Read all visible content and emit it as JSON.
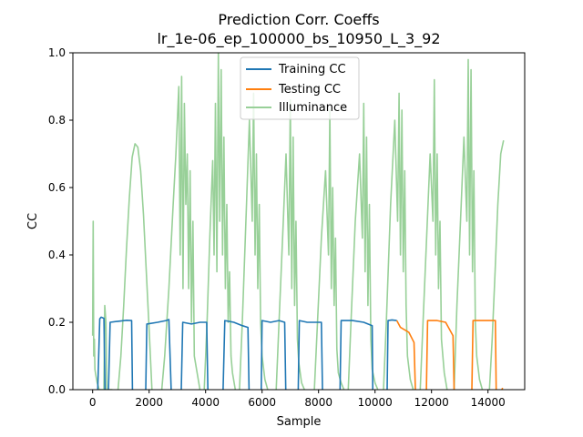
{
  "chart_data": {
    "type": "line",
    "title": "Prediction Corr. Coeffs",
    "subtitle": "lr_1e-06_ep_100000_bs_10950_L_3_92",
    "xlabel": "Sample",
    "ylabel": "CC",
    "xlim": [
      -700,
      15300
    ],
    "ylim": [
      0,
      1.0
    ],
    "x_ticks": [
      0,
      2000,
      4000,
      6000,
      8000,
      10000,
      12000,
      14000
    ],
    "y_ticks": [
      0.0,
      0.2,
      0.4,
      0.6,
      0.8,
      1.0
    ],
    "legend_position": "upper center",
    "grid": false,
    "series": [
      {
        "name": "Training CC",
        "color": "#1f77b4",
        "segments": [
          {
            "x": [
              180,
              250,
              300,
              400,
              440
            ],
            "y": [
              0.0,
              0.21,
              0.215,
              0.212,
              0.0
            ]
          },
          {
            "x": [
              560,
              620,
              900,
              1200,
              1380,
              1410
            ],
            "y": [
              0.0,
              0.2,
              0.203,
              0.206,
              0.205,
              0.0
            ]
          },
          {
            "x": [
              1880,
              1920,
              2300,
              2600,
              2700,
              2780
            ],
            "y": [
              0.0,
              0.195,
              0.2,
              0.205,
              0.208,
              0.0
            ]
          },
          {
            "x": [
              3140,
              3190,
              3500,
              3800,
              4040,
              4080
            ],
            "y": [
              0.0,
              0.2,
              0.195,
              0.2,
              0.2,
              0.0
            ]
          },
          {
            "x": [
              4620,
              4680,
              5000,
              5300,
              5500,
              5540
            ],
            "y": [
              0.0,
              0.205,
              0.2,
              0.19,
              0.185,
              0.0
            ]
          },
          {
            "x": [
              5970,
              6000,
              6300,
              6600,
              6800,
              6840
            ],
            "y": [
              0.0,
              0.205,
              0.2,
              0.205,
              0.2,
              0.0
            ]
          },
          {
            "x": [
              7280,
              7320,
              7600,
              7900,
              8100,
              8140
            ],
            "y": [
              0.0,
              0.205,
              0.2,
              0.2,
              0.2,
              0.0
            ]
          },
          {
            "x": [
              8760,
              8800,
              9200,
              9600,
              9900,
              9920
            ],
            "y": [
              0.0,
              0.205,
              0.205,
              0.2,
              0.19,
              0.0
            ]
          },
          {
            "x": [
              10430,
              10460,
              10600,
              10770
            ],
            "y": [
              0.0,
              0.205,
              0.207,
              0.205
            ]
          }
        ]
      },
      {
        "name": "Testing CC",
        "color": "#ff7f0e",
        "segments": [
          {
            "x": [
              10770,
              10900,
              11200,
              11380,
              11430
            ],
            "y": [
              0.205,
              0.185,
              0.17,
              0.14,
              0.0
            ]
          },
          {
            "x": [
              11820,
              11860,
              12200,
              12500,
              12760,
              12800
            ],
            "y": [
              0.0,
              0.205,
              0.205,
              0.2,
              0.16,
              0.0
            ]
          },
          {
            "x": [
              13430,
              13470,
              13800,
              14100,
              14260,
              14290
            ],
            "y": [
              0.0,
              0.205,
              0.205,
              0.205,
              0.205,
              0.0
            ]
          },
          {
            "x": [
              14490,
              14520
            ],
            "y": [
              0.0,
              0.005
            ]
          }
        ]
      },
      {
        "name": "Illuminance",
        "color": "#98d098",
        "segments": [
          {
            "x": [
              0,
              20,
              40,
              60,
              80,
              120,
              160,
              200,
              230,
              260,
              300,
              350,
              400,
              430,
              470,
              500,
              530,
              560,
              600,
              640,
              700
            ],
            "y": [
              0.16,
              0.5,
              0.1,
              0.15,
              0.06,
              0.04,
              0.02,
              0.01,
              0.0,
              0.0,
              0.0,
              0.0,
              0.0,
              0.25,
              0.2,
              0.0,
              0.0,
              0.0,
              0.0,
              0.0,
              0.0
            ]
          },
          {
            "x": [
              900,
              1000,
              1100,
              1200,
              1300,
              1400,
              1500,
              1600,
              1700,
              1800,
              1900,
              2000,
              2100
            ],
            "y": [
              0.0,
              0.1,
              0.25,
              0.42,
              0.57,
              0.69,
              0.73,
              0.72,
              0.65,
              0.52,
              0.35,
              0.18,
              0.0
            ]
          },
          {
            "x": [
              2450,
              2550,
              2700,
              2850,
              2950,
              3050,
              3100,
              3150,
              3200,
              3250,
              3300,
              3350,
              3400,
              3450,
              3500,
              3550,
              3600,
              3700,
              3800
            ],
            "y": [
              0.0,
              0.1,
              0.3,
              0.55,
              0.7,
              0.9,
              0.4,
              0.93,
              0.3,
              0.85,
              0.55,
              0.7,
              0.3,
              0.65,
              0.2,
              0.5,
              0.1,
              0.05,
              0.0
            ]
          },
          {
            "x": [
              3950,
              4050,
              4150,
              4250,
              4300,
              4350,
              4400,
              4450,
              4500,
              4550,
              4600,
              4650,
              4700,
              4750,
              4800,
              4850,
              4900,
              4950,
              5050
            ],
            "y": [
              0.0,
              0.2,
              0.45,
              0.68,
              0.4,
              0.85,
              0.35,
              1.0,
              0.5,
              0.95,
              0.4,
              0.75,
              0.3,
              0.55,
              0.2,
              0.35,
              0.1,
              0.05,
              0.0
            ]
          },
          {
            "x": [
              5200,
              5300,
              5450,
              5550,
              5650,
              5700,
              5750,
              5800,
              5850,
              5900,
              5950,
              6000,
              6100,
              6200
            ],
            "y": [
              0.0,
              0.2,
              0.55,
              0.8,
              0.5,
              0.88,
              0.4,
              0.7,
              0.3,
              0.55,
              0.2,
              0.1,
              0.03,
              0.0
            ]
          },
          {
            "x": [
              6500,
              6600,
              6750,
              6850,
              6950,
              7000,
              7050,
              7100,
              7150,
              7200,
              7250,
              7300,
              7400,
              7500
            ],
            "y": [
              0.0,
              0.2,
              0.5,
              0.7,
              0.4,
              0.86,
              0.3,
              0.75,
              0.25,
              0.5,
              0.15,
              0.08,
              0.02,
              0.0
            ]
          },
          {
            "x": [
              7850,
              7950,
              8100,
              8250,
              8350,
              8400,
              8450,
              8500,
              8550,
              8600,
              8650,
              8700,
              8800,
              8900
            ],
            "y": [
              0.0,
              0.18,
              0.45,
              0.65,
              0.4,
              0.83,
              0.3,
              0.6,
              0.25,
              0.45,
              0.12,
              0.05,
              0.02,
              0.0
            ]
          },
          {
            "x": [
              9050,
              9150,
              9300,
              9450,
              9550,
              9600,
              9650,
              9700,
              9750,
              9800,
              9850,
              9900,
              10000,
              10100
            ],
            "y": [
              0.0,
              0.2,
              0.5,
              0.7,
              0.45,
              0.85,
              0.35,
              0.75,
              0.25,
              0.55,
              0.15,
              0.06,
              0.02,
              0.0
            ]
          },
          {
            "x": [
              10300,
              10400,
              10550,
              10700,
              10800,
              10850,
              10900,
              10950,
              11000,
              11050,
              11100,
              11150,
              11250,
              11350
            ],
            "y": [
              0.0,
              0.2,
              0.55,
              0.8,
              0.5,
              0.88,
              0.4,
              0.83,
              0.35,
              0.65,
              0.25,
              0.1,
              0.03,
              0.0
            ]
          },
          {
            "x": [
              11600,
              11700,
              11850,
              11950,
              12050,
              12100,
              12150,
              12200,
              12250,
              12300,
              12350,
              12450,
              12550
            ],
            "y": [
              0.0,
              0.2,
              0.5,
              0.7,
              0.5,
              0.92,
              0.4,
              0.7,
              0.3,
              0.5,
              0.15,
              0.05,
              0.0
            ]
          },
          {
            "x": [
              12800,
              12900,
              13050,
              13150,
              13250,
              13300,
              13350,
              13400,
              13450,
              13500,
              13550,
              13600,
              13700,
              13800
            ],
            "y": [
              0.0,
              0.25,
              0.55,
              0.75,
              0.5,
              0.98,
              0.4,
              0.95,
              0.35,
              0.65,
              0.2,
              0.1,
              0.03,
              0.0
            ]
          },
          {
            "x": [
              14050,
              14150,
              14250,
              14350,
              14450,
              14500,
              14550
            ],
            "y": [
              0.0,
              0.15,
              0.35,
              0.55,
              0.7,
              0.72,
              0.74
            ]
          }
        ]
      }
    ]
  }
}
